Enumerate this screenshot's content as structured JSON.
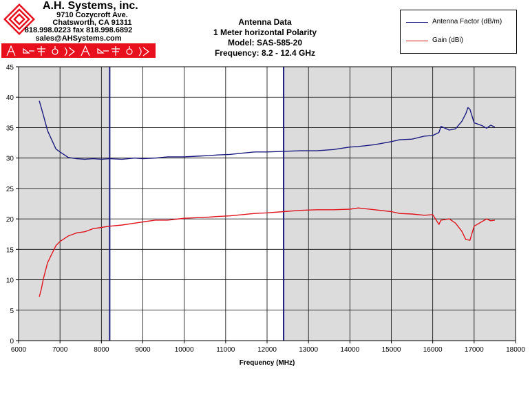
{
  "header": {
    "company": "A.H. Systems, inc.",
    "address_line1": "9710 Cozycroft Ave.",
    "address_line2": "Chatsworth, CA 91311",
    "phone": "818.998.0223 fax 818.998.6892",
    "web": "sales@AHSystems.com  www.AHSystems.com"
  },
  "colors": {
    "antenna_factor": "#1a1a80",
    "gain": "#e0141c",
    "shaded_band": "#dcdcdc",
    "brand_red": "#e8101c"
  },
  "chart_data": {
    "type": "line",
    "title_lines": [
      "Antenna Data",
      "1 Meter horizontal Polarity",
      "Model: SAS-585-20",
      "Frequency: 8.2 - 12.4 GHz"
    ],
    "xlabel": "Frequency (MHz)",
    "ylabel": "",
    "xlim": [
      6000,
      18000
    ],
    "ylim": [
      0,
      45
    ],
    "xticks": [
      6000,
      7000,
      8000,
      9000,
      10000,
      11000,
      12000,
      13000,
      14000,
      15000,
      16000,
      17000,
      18000
    ],
    "yticks": [
      0,
      5,
      10,
      15,
      20,
      25,
      30,
      35,
      40,
      45
    ],
    "grid": true,
    "legend_position": "top-right",
    "shaded_ranges": [
      [
        6000,
        8200
      ],
      [
        12400,
        18000
      ]
    ],
    "series": [
      {
        "name": "Antenna Factor (dB/m)",
        "x": [
          6500,
          6600,
          6700,
          6800,
          6900,
          7000,
          7200,
          7400,
          7600,
          7800,
          8000,
          8200,
          8500,
          8800,
          9000,
          9300,
          9600,
          10000,
          10300,
          10600,
          10800,
          11100,
          11400,
          11700,
          12000,
          12400,
          12800,
          13200,
          13600,
          14000,
          14200,
          14600,
          15000,
          15200,
          15500,
          15800,
          16000,
          16150,
          16200,
          16400,
          16550,
          16700,
          16800,
          16850,
          16900,
          17000,
          17200,
          17300,
          17400,
          17500
        ],
        "y": [
          39.4,
          37.0,
          34.5,
          33.0,
          31.5,
          31.0,
          30.1,
          29.9,
          29.8,
          29.9,
          29.8,
          29.9,
          29.8,
          30.0,
          29.9,
          30.0,
          30.2,
          30.2,
          30.3,
          30.4,
          30.5,
          30.6,
          30.8,
          31.0,
          31.0,
          31.1,
          31.2,
          31.2,
          31.4,
          31.8,
          31.9,
          32.2,
          32.7,
          33.0,
          33.1,
          33.6,
          33.7,
          34.2,
          35.2,
          34.6,
          34.8,
          36.0,
          37.3,
          38.3,
          38.0,
          35.8,
          35.3,
          34.9,
          35.4,
          35.1
        ]
      },
      {
        "name": "Gain (dBi)",
        "x": [
          6500,
          6550,
          6600,
          6700,
          6800,
          6900,
          7000,
          7200,
          7400,
          7600,
          7800,
          8000,
          8200,
          8500,
          8800,
          9000,
          9300,
          9600,
          10000,
          10300,
          10600,
          10800,
          11100,
          11400,
          11700,
          12000,
          12400,
          12800,
          13200,
          13600,
          14000,
          14200,
          14600,
          15000,
          15200,
          15500,
          15800,
          16000,
          16150,
          16200,
          16400,
          16550,
          16700,
          16800,
          16900,
          17000,
          17200,
          17300,
          17400,
          17500
        ],
        "y": [
          7.2,
          8.5,
          10.2,
          12.8,
          14.2,
          15.6,
          16.3,
          17.2,
          17.7,
          17.9,
          18.4,
          18.6,
          18.8,
          19.0,
          19.3,
          19.5,
          19.8,
          19.8,
          20.1,
          20.2,
          20.3,
          20.4,
          20.5,
          20.7,
          20.9,
          21.0,
          21.2,
          21.4,
          21.5,
          21.5,
          21.6,
          21.8,
          21.5,
          21.2,
          20.9,
          20.8,
          20.6,
          20.7,
          19.1,
          19.8,
          20.0,
          19.3,
          18.0,
          16.6,
          16.5,
          18.8,
          19.6,
          20.0,
          19.7,
          19.8
        ]
      }
    ]
  }
}
